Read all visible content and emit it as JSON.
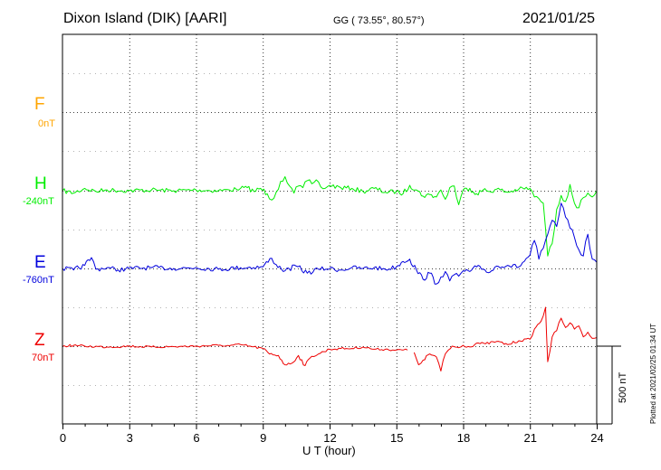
{
  "header": {
    "station": "Dixon Island (DIK)  [AARI]",
    "coords": "GG ( 73.55°,  80.57°)",
    "date": "2021/01/25"
  },
  "components": [
    {
      "id": "F",
      "letter": "F",
      "baseline": "0nT",
      "color": "#FFA500"
    },
    {
      "id": "H",
      "letter": "H",
      "baseline": "-240nT",
      "color": "#00EE00"
    },
    {
      "id": "E",
      "letter": "E",
      "baseline": "-760nT",
      "color": "#0000DD"
    },
    {
      "id": "Z",
      "letter": "Z",
      "baseline": "70nT",
      "color": "#EE0000"
    }
  ],
  "scale_bar": {
    "label": "500 nT",
    "value_nT": 500
  },
  "footer": "Plotted at 2021/02/25 01:34 UT",
  "chart_data": {
    "type": "line",
    "xlabel": "U T (hour)",
    "xlim": [
      0,
      24
    ],
    "xticks": [
      "0",
      "3",
      "6",
      "9",
      "12",
      "15",
      "18",
      "21",
      "24"
    ],
    "grid": true,
    "units": "nT",
    "baseline_order_top_to_bottom": [
      "F",
      "H",
      "E",
      "Z"
    ],
    "series": [
      {
        "name": "H",
        "color": "#00EE00",
        "x": [
          0,
          0.5,
          1,
          1.5,
          2,
          3,
          4,
          5,
          6,
          7,
          7.5,
          7.8,
          8,
          8.3,
          8.6,
          8.9,
          9.2,
          9.4,
          9.6,
          9.8,
          10,
          10.2,
          10.4,
          10.6,
          10.8,
          11,
          11.2,
          11.4,
          11.6,
          11.8,
          12,
          12.5,
          13,
          13.5,
          14,
          14.5,
          15,
          15.3,
          15.6,
          15.9,
          16.2,
          16.5,
          16.8,
          17,
          17.2,
          17.4,
          17.6,
          17.8,
          18,
          18.3,
          18.6,
          18.9,
          19.2,
          19.5,
          20,
          20.5,
          21,
          21.2,
          21.4,
          21.6,
          21.8,
          22,
          22.2,
          22.4,
          22.6,
          22.8,
          23,
          23.2,
          23.4,
          23.6,
          23.8,
          24
        ],
        "values": [
          0,
          -15,
          15,
          -5,
          5,
          0,
          5,
          0,
          5,
          0,
          5,
          10,
          15,
          20,
          -5,
          15,
          -20,
          -60,
          -10,
          60,
          90,
          30,
          -15,
          30,
          20,
          65,
          45,
          70,
          25,
          15,
          35,
          20,
          15,
          -5,
          15,
          -10,
          -5,
          -20,
          35,
          5,
          -35,
          -25,
          -40,
          5,
          -55,
          20,
          30,
          -90,
          5,
          15,
          -20,
          5,
          -5,
          10,
          -10,
          10,
          15,
          -40,
          -50,
          -80,
          -420,
          -340,
          -120,
          -30,
          -70,
          40,
          -80,
          -110,
          -45,
          -15,
          -40,
          0
        ]
      },
      {
        "name": "E",
        "color": "#0000DD",
        "x": [
          0,
          0.5,
          1,
          1.3,
          1.5,
          2,
          2.5,
          3,
          4,
          5,
          6,
          7,
          8,
          9,
          9.4,
          9.6,
          10,
          10.5,
          11,
          11.5,
          12,
          12.5,
          13,
          13.5,
          14,
          14.5,
          15,
          15.3,
          15.6,
          15.9,
          16.2,
          16.5,
          16.8,
          17,
          17.2,
          17.4,
          17.6,
          17.8,
          18,
          18.3,
          18.6,
          18.9,
          19.2,
          19.5,
          20,
          20.5,
          21,
          21.2,
          21.4,
          21.6,
          21.8,
          22,
          22.2,
          22.4,
          22.6,
          22.8,
          23,
          23.2,
          23.4,
          23.6,
          23.8,
          24
        ],
        "values": [
          0,
          -10,
          20,
          70,
          -5,
          5,
          -10,
          0,
          5,
          0,
          5,
          -5,
          5,
          10,
          65,
          25,
          -15,
          15,
          -30,
          -5,
          0,
          -10,
          5,
          0,
          5,
          -5,
          10,
          45,
          60,
          -10,
          -70,
          -30,
          -100,
          -55,
          -20,
          -80,
          -40,
          -50,
          -15,
          -20,
          10,
          -5,
          -25,
          15,
          20,
          10,
          85,
          180,
          60,
          130,
          220,
          310,
          270,
          420,
          330,
          260,
          200,
          120,
          80,
          220,
          60,
          40
        ]
      },
      {
        "name": "Z",
        "color": "#EE0000",
        "x": [
          0,
          0.5,
          1,
          2,
          3,
          4,
          5,
          6,
          7,
          7.5,
          8,
          8.5,
          9,
          9.3,
          9.7,
          10,
          10.3,
          10.6,
          10.9,
          11.2,
          11.5,
          12,
          12.5,
          13,
          13.5,
          14,
          14.5,
          15,
          15.5,
          15.6,
          15.8,
          16,
          16.2,
          16.5,
          16.8,
          17,
          17.2,
          17.5,
          17.8,
          18,
          18.3,
          18.6,
          19,
          19.5,
          20,
          20.5,
          21,
          21.2,
          21.5,
          21.7,
          21.8,
          22,
          22.2,
          22.4,
          22.6,
          22.8,
          23,
          23.2,
          23.4,
          23.6,
          23.8,
          24
        ],
        "values": [
          0,
          5,
          0,
          -5,
          0,
          -5,
          -3,
          0,
          5,
          3,
          10,
          -3,
          -15,
          -50,
          -60,
          -120,
          -110,
          -60,
          -125,
          -65,
          -50,
          -20,
          -15,
          -15,
          -5,
          -20,
          -20,
          -25,
          -25,
          null,
          -40,
          -120,
          -90,
          -50,
          -70,
          -160,
          -50,
          0,
          -10,
          5,
          -5,
          20,
          15,
          30,
          10,
          35,
          45,
          110,
          160,
          250,
          -100,
          60,
          100,
          180,
          120,
          150,
          110,
          130,
          60,
          90,
          50,
          55
        ]
      }
    ]
  }
}
